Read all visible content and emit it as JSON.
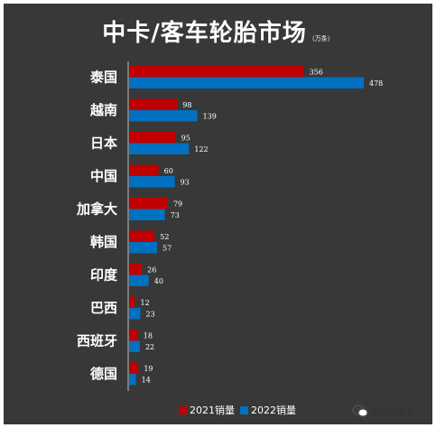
{
  "title": "中卡/客车轮胎市场",
  "unit": "（万条）",
  "watermark": "轮胎商业",
  "colors": {
    "background": "#383838",
    "series_2021": "#c00000",
    "series_2022": "#0070c0"
  },
  "chart_data": {
    "type": "bar",
    "orientation": "horizontal",
    "categories": [
      "泰国",
      "越南",
      "日本",
      "中国",
      "加拿大",
      "韩国",
      "印度",
      "巴西",
      "西班牙",
      "德国"
    ],
    "series": [
      {
        "name": "2021销量",
        "values": [
          356,
          98,
          95,
          60,
          79,
          52,
          26,
          12,
          18,
          19
        ]
      },
      {
        "name": "2022销量",
        "values": [
          478,
          139,
          122,
          93,
          73,
          57,
          40,
          23,
          22,
          14
        ]
      }
    ],
    "title": "中卡/客车轮胎市场",
    "xlabel": "",
    "ylabel": "",
    "xlim": [
      0,
      478
    ],
    "grid": false,
    "legend_position": "bottom"
  }
}
